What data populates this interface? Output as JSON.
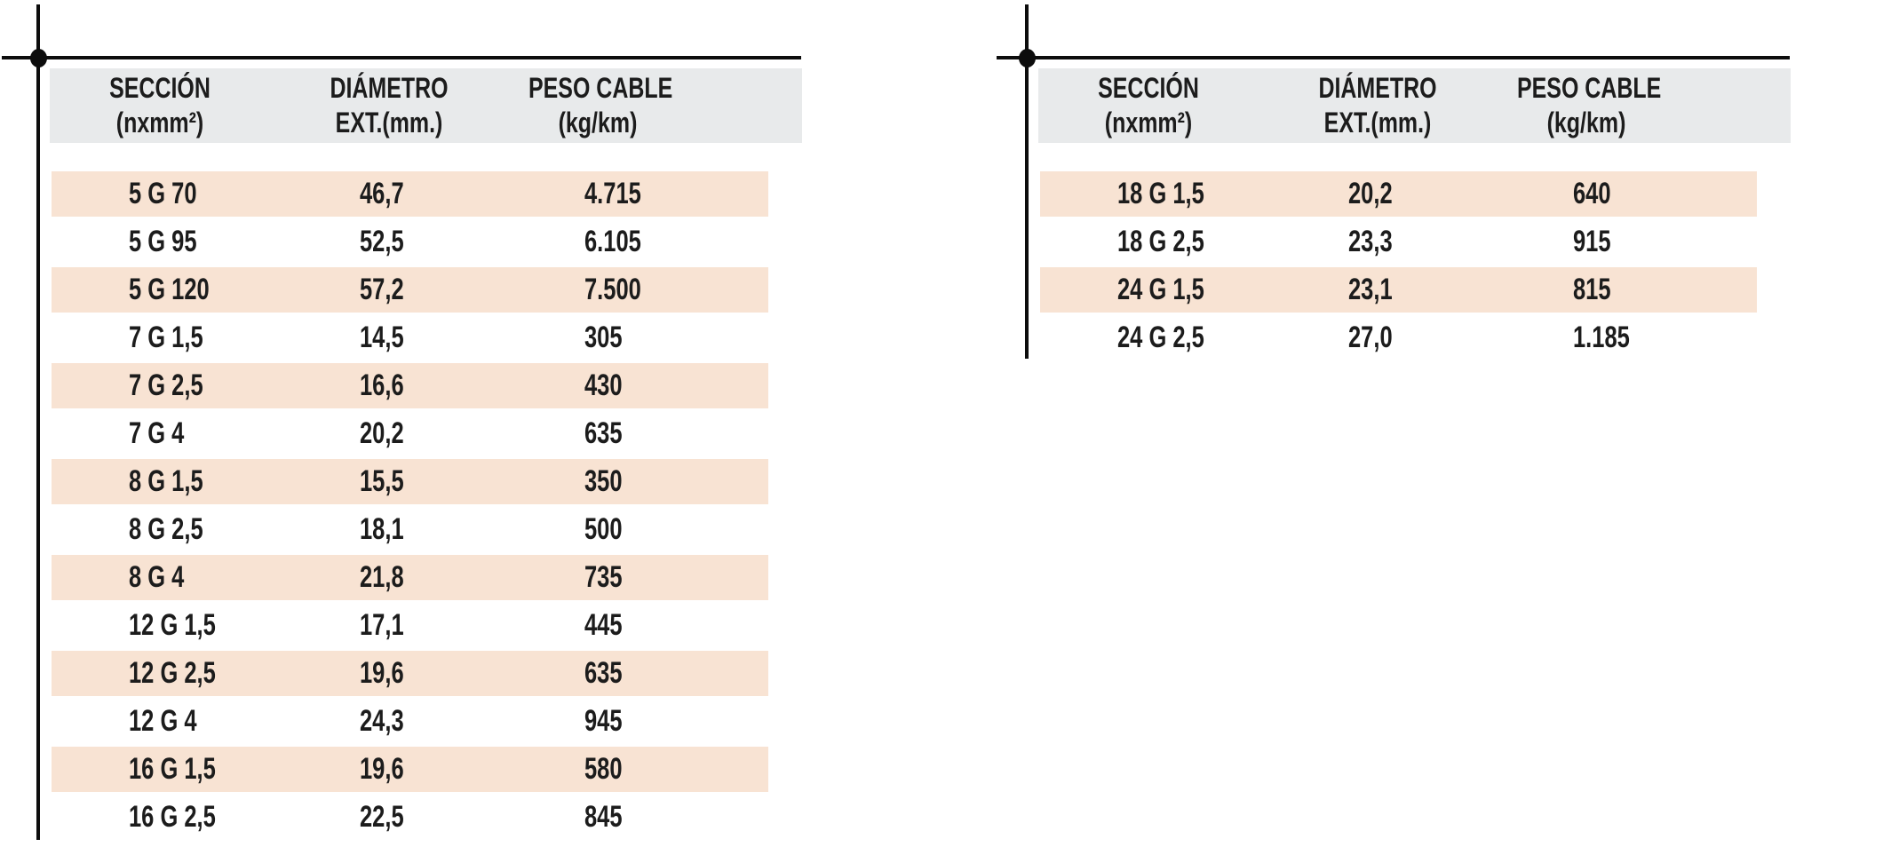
{
  "colors": {
    "header_bg": "#e8eaeb",
    "stripe_bg": "#f8e3d3",
    "text": "#1c1c1c",
    "line": "#0d0d0d"
  },
  "left_table": {
    "columns": [
      {
        "title": "SECCIÓN",
        "subtitle": "(nxmm²)"
      },
      {
        "title": "DIÁMETRO",
        "subtitle": "EXT.(mm.)"
      },
      {
        "title": "PESO CABLE",
        "subtitle": "(kg/km)"
      }
    ],
    "rows": [
      [
        "5 G 70",
        "46,7",
        "4.715"
      ],
      [
        "5 G 95",
        "52,5",
        "6.105"
      ],
      [
        "5 G 120",
        "57,2",
        "7.500"
      ],
      [
        "7 G 1,5",
        "14,5",
        "305"
      ],
      [
        "7 G 2,5",
        "16,6",
        "430"
      ],
      [
        "7 G 4",
        "20,2",
        "635"
      ],
      [
        "8 G 1,5",
        "15,5",
        "350"
      ],
      [
        "8 G 2,5",
        "18,1",
        "500"
      ],
      [
        "8 G 4",
        "21,8",
        "735"
      ],
      [
        "12 G 1,5",
        "17,1",
        "445"
      ],
      [
        "12 G 2,5",
        "19,6",
        "635"
      ],
      [
        "12 G 4",
        "24,3",
        "945"
      ],
      [
        "16 G 1,5",
        "19,6",
        "580"
      ],
      [
        "16 G 2,5",
        "22,5",
        "845"
      ]
    ]
  },
  "right_table": {
    "columns": [
      {
        "title": "SECCIÓN",
        "subtitle": "(nxmm²)"
      },
      {
        "title": "DIÁMETRO",
        "subtitle": "EXT.(mm.)"
      },
      {
        "title": "PESO CABLE",
        "subtitle": "(kg/km)"
      }
    ],
    "rows": [
      [
        "18 G 1,5",
        "20,2",
        "640"
      ],
      [
        "18 G 2,5",
        "23,3",
        "915"
      ],
      [
        "24 G 1,5",
        "23,1",
        "815"
      ],
      [
        "24 G 2,5",
        "27,0",
        "1.185"
      ]
    ]
  }
}
